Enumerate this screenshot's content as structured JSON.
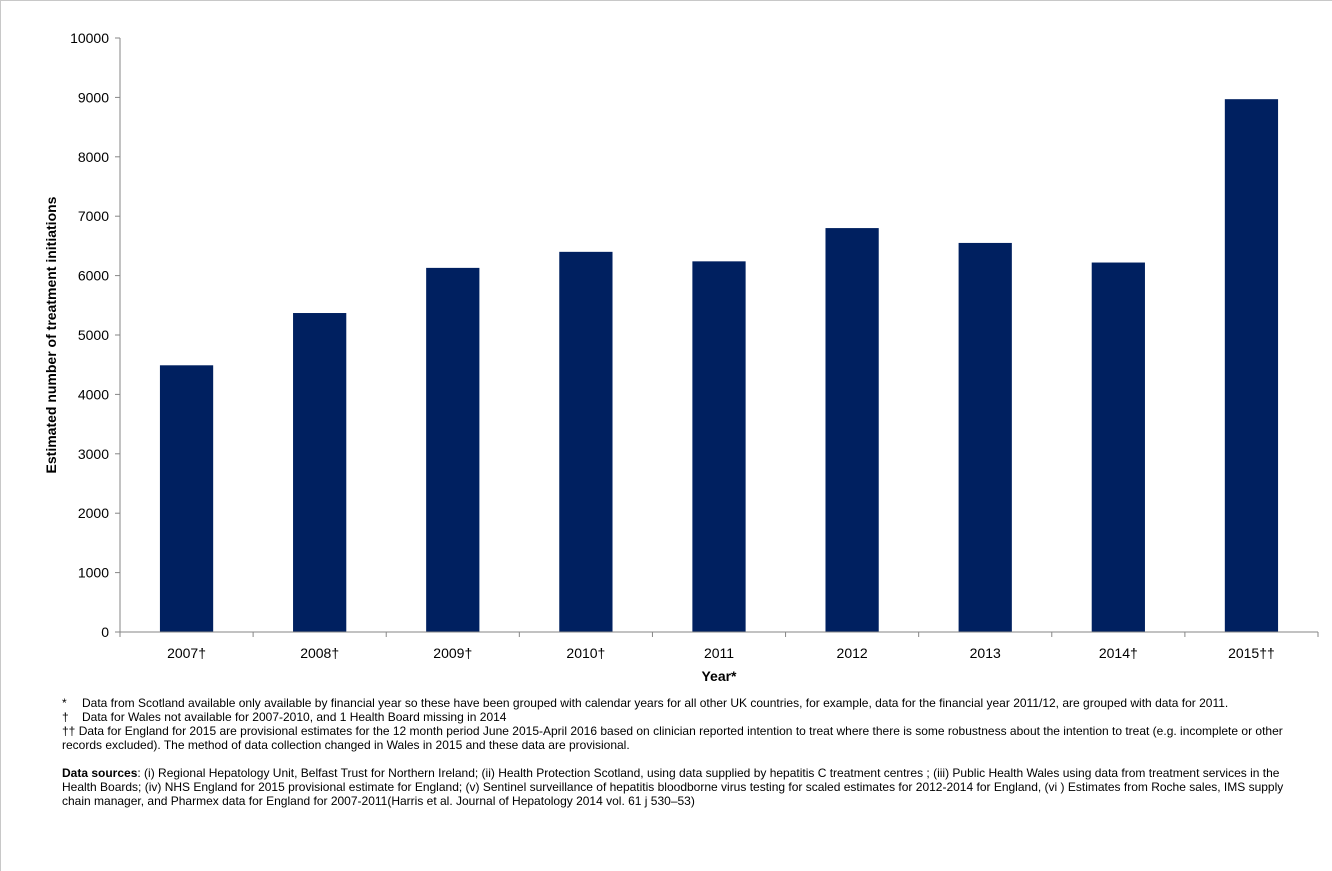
{
  "chart_data": {
    "type": "bar",
    "categories": [
      "2007†",
      "2008†",
      "2009†",
      "2010†",
      "2011",
      "2012",
      "2013",
      "2014†",
      "2015††"
    ],
    "values": [
      4490,
      5370,
      6130,
      6400,
      6240,
      6800,
      6550,
      6220,
      8970
    ],
    "xlabel": "Year*",
    "ylabel": "Estimated number of treatment initiations",
    "ylim": [
      0,
      10000
    ],
    "yticks": [
      0,
      1000,
      2000,
      3000,
      4000,
      5000,
      6000,
      7000,
      8000,
      9000,
      10000
    ],
    "bar_color": "#002060",
    "grid": false,
    "legend": "none"
  },
  "footnotes": {
    "asterisk_symbol": "*",
    "asterisk_text": "Data from Scotland available only available by financial year so these have been grouped with calendar years for all other UK countries, for example, data for the financial year 2011/12, are grouped with data for 2011.",
    "dagger_symbol": "†",
    "dagger_text": "Data for Wales not available for 2007-2010, and 1 Health Board missing in 2014",
    "double_dagger_symbol": "††",
    "double_dagger_text": "Data for England for 2015 are provisional estimates for the 12 month period June 2015-April 2016 based on clinician reported intention to treat where there is some robustness about the intention to treat (e.g. incomplete or other records excluded). The method of data collection changed in Wales in 2015 and these data are provisional."
  },
  "data_sources": {
    "label": "Data sources",
    "text": ": (i) Regional Hepatology Unit, Belfast Trust for Northern Ireland; (ii) Health Protection Scotland, using data supplied by hepatitis C treatment centres ; (iii) Public Health Wales using data from treatment services in the Health Boards; (iv) NHS England for 2015 provisional estimate for England; (v) Sentinel surveillance of hepatitis bloodborne virus testing for scaled estimates for 2012-2014 for England, (vi ) Estimates from Roche sales, IMS supply chain manager, and Pharmex data for England for 2007-2011(Harris et al. Journal of Hepatology 2014 vol. 61 j 530–53)"
  }
}
